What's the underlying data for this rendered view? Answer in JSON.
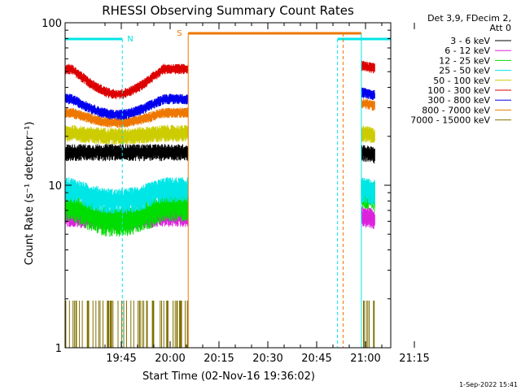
{
  "chart_data": {
    "type": "line",
    "title": "RHESSI Observing Summary Count Rates",
    "xlabel": "Start Time (02-Nov-16 19:36:02)",
    "ylabel": "Count Rate (s⁻¹ detector⁻¹)",
    "yscale": "log",
    "ylim": [
      1,
      100
    ],
    "xlim_minutes": [
      19.0,
      60.0
    ],
    "x_ticks": [
      "19:45",
      "20:00",
      "20:15",
      "20:30",
      "20:45",
      "21:00",
      "21:15"
    ],
    "y_ticks": [
      "1",
      "10",
      "100"
    ],
    "legend_header": [
      "Det 3,9, FDecim 2,",
      "Att 0"
    ],
    "legend_position": "right",
    "footer_date": "1-Sep-2022 15:41",
    "segments_minutes": [
      [
        19.0,
        34.5
      ],
      [
        56.3,
        58.0
      ]
    ],
    "series": [
      {
        "name": "3 - 6 keV",
        "color": "#000000",
        "level": 16.0,
        "jitter": 0.08,
        "dip": 0.0,
        "late_boost": 1.0
      },
      {
        "name": "6 - 12 keV",
        "color": "#dd22dd",
        "level": 6.5,
        "jitter": 0.1,
        "dip": 0.05,
        "late_boost": 1.0
      },
      {
        "name": "12 - 25 keV",
        "color": "#00dd00",
        "level": 7.5,
        "jitter": 0.14,
        "dip": 0.2,
        "late_boost": 1.2
      },
      {
        "name": "25 - 50 keV",
        "color": "#00e6e6",
        "level": 9.5,
        "jitter": 0.12,
        "dip": 0.15,
        "late_boost": 1.0
      },
      {
        "name": "50 - 100 keV",
        "color": "#cccc00",
        "level": 21.0,
        "jitter": 0.08,
        "dip": 0.04,
        "late_boost": 1.0
      },
      {
        "name": "100 - 300 keV",
        "color": "#dd0000",
        "level": 52.0,
        "jitter": 0.05,
        "dip": 0.3,
        "late_boost": 1.05
      },
      {
        "name": "300 - 800 keV",
        "color": "#0000ee",
        "level": 34.0,
        "jitter": 0.05,
        "dip": 0.2,
        "late_boost": 1.1
      },
      {
        "name": "800 - 7000 keV",
        "color": "#ee7700",
        "level": 28.0,
        "jitter": 0.05,
        "dip": 0.13,
        "late_boost": 1.15
      },
      {
        "name": "7000 - 15000 keV",
        "color": "#807000",
        "level": 1.0,
        "jitter": 0.0,
        "dip": 0.0,
        "late_boost": 1.0
      }
    ],
    "annotations": {
      "night": [
        {
          "label": "N",
          "start_minutes": 19.0,
          "end_minutes": 26.2,
          "vlines_minutes": [
            19.0,
            26.2
          ]
        },
        {
          "label": "",
          "start_minutes": 53.3,
          "end_minutes": 60.0,
          "vlines_minutes": [
            53.3,
            60.0
          ]
        }
      ],
      "saa": {
        "label": "S",
        "start_minutes": 34.5,
        "end_minutes": 54.0,
        "vlines_minutes": [
          34.5,
          56.3
        ]
      }
    }
  }
}
